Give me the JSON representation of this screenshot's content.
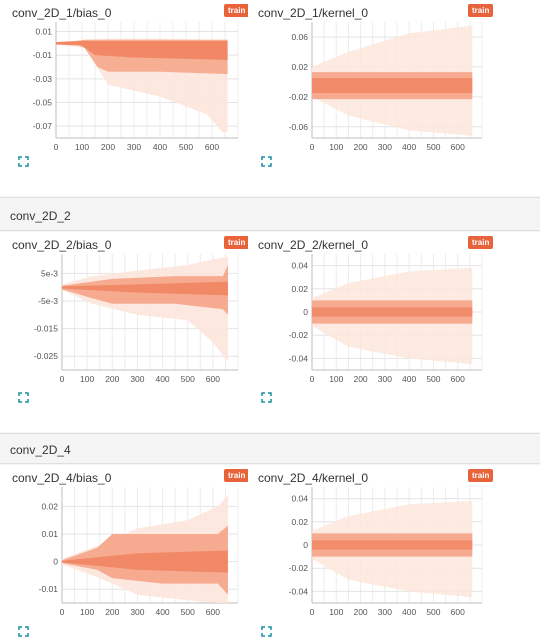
{
  "groups": [
    {
      "title": "",
      "cards": [
        {
          "name": "conv_2D_1/bias_0",
          "badge": "train",
          "yticks": [
            "0.01",
            "-0.01",
            "-0.03",
            "-0.05",
            "-0.07"
          ],
          "ytick_values": [
            0.01,
            -0.01,
            -0.03,
            -0.05,
            -0.07
          ],
          "xticks": [
            "0",
            "100",
            "200",
            "300",
            "400",
            "500",
            "600"
          ],
          "ylim": [
            -0.08,
            0.018
          ],
          "shape": "bias1"
        },
        {
          "name": "conv_2D_1/kernel_0",
          "badge": "train",
          "yticks": [
            "0.06",
            "0.02",
            "-0.02",
            "-0.06"
          ],
          "ytick_values": [
            0.06,
            0.02,
            -0.02,
            -0.06
          ],
          "xticks": [
            "0",
            "100",
            "200",
            "300",
            "400",
            "500",
            "600"
          ],
          "ylim": [
            -0.075,
            0.08
          ],
          "shape": "kernel"
        }
      ]
    },
    {
      "title": "conv_2D_2",
      "cards": [
        {
          "name": "conv_2D_2/bias_0",
          "badge": "train",
          "yticks": [
            "5e-3",
            "-5e-3",
            "-0.015",
            "-0.025"
          ],
          "ytick_values": [
            0.005,
            -0.005,
            -0.015,
            -0.025
          ],
          "xticks": [
            "0",
            "100",
            "200",
            "300",
            "400",
            "500",
            "600"
          ],
          "ylim": [
            -0.03,
            0.012
          ],
          "shape": "bias2"
        },
        {
          "name": "conv_2D_2/kernel_0",
          "badge": "train",
          "yticks": [
            "0.04",
            "0.02",
            "0",
            "-0.02",
            "-0.04"
          ],
          "ytick_values": [
            0.04,
            0.02,
            0,
            -0.02,
            -0.04
          ],
          "xticks": [
            "0",
            "100",
            "200",
            "300",
            "400",
            "500",
            "600"
          ],
          "ylim": [
            -0.05,
            0.05
          ],
          "shape": "kernel2"
        }
      ]
    },
    {
      "title": "conv_2D_4",
      "cards": [
        {
          "name": "conv_2D_4/bias_0",
          "badge": "train",
          "yticks": [
            "0.02",
            "0.01",
            "0",
            "-0.01"
          ],
          "ytick_values": [
            0.02,
            0.01,
            0,
            -0.01
          ],
          "xticks": [
            "0",
            "100",
            "200",
            "300",
            "400",
            "500",
            "600"
          ],
          "ylim": [
            -0.015,
            0.027
          ],
          "shape": "bias4"
        },
        {
          "name": "conv_2D_4/kernel_0",
          "badge": "train",
          "yticks": [
            "0.04",
            "0.02",
            "0",
            "-0.02",
            "-0.04"
          ],
          "ytick_values": [
            0.04,
            0.02,
            0,
            -0.02,
            -0.04
          ],
          "xticks": [
            "0",
            "100",
            "200",
            "300",
            "400",
            "500",
            "600"
          ],
          "ylim": [
            -0.05,
            0.05
          ],
          "shape": "kernel2"
        }
      ]
    }
  ],
  "colors": {
    "accent": "#e8623a",
    "band_dark": "#f0835f",
    "band_mid": "#f6a88c",
    "band_light": "#fde6dc",
    "expand": "#1a8fa0"
  },
  "icons": {
    "expand": "fullscreen-icon"
  }
}
